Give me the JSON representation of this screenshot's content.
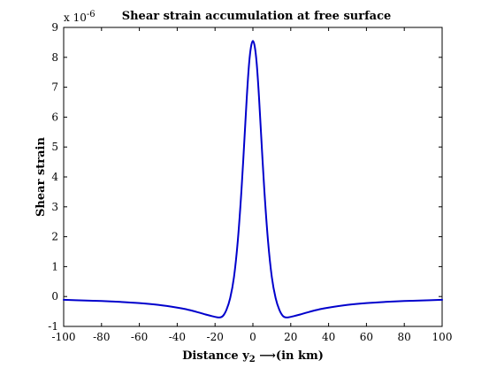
{
  "chart_data": {
    "type": "line",
    "title": "Shear strain accumulation at free surface",
    "xlabel": {
      "main": "Distance y",
      "subscript": "2",
      "suffix": " ⟶(in km)"
    },
    "ylabel": "Shear strain",
    "y_multiplier": {
      "prefix": "x 10",
      "exponent": "-6"
    },
    "xlim": [
      -100,
      100
    ],
    "ylim": [
      -1,
      9
    ],
    "xticks": [
      -100,
      -80,
      -60,
      -40,
      -20,
      0,
      20,
      40,
      60,
      80,
      100
    ],
    "yticks": [
      -1,
      0,
      1,
      2,
      3,
      4,
      5,
      6,
      7,
      8,
      9
    ],
    "grid": false,
    "line_color": "#0000cc",
    "series": [
      {
        "x": [
          -100,
          -90,
          -80,
          -70,
          -60,
          -50,
          -40,
          -35,
          -30,
          -25,
          -22,
          -20,
          -18,
          -16,
          -14,
          -12,
          -10,
          -8,
          -6,
          -4,
          -3,
          -2,
          -1,
          0,
          1,
          2,
          3,
          4,
          6,
          8,
          10,
          12,
          14,
          16,
          18,
          20,
          22,
          25,
          30,
          35,
          40,
          50,
          60,
          70,
          80,
          90,
          100
        ],
        "y": [
          -0.11,
          -0.13,
          -0.15,
          -0.18,
          -0.22,
          -0.28,
          -0.37,
          -0.43,
          -0.51,
          -0.6,
          -0.65,
          -0.68,
          -0.7,
          -0.66,
          -0.45,
          -0.05,
          0.65,
          1.85,
          3.6,
          5.8,
          6.9,
          7.8,
          8.35,
          8.55,
          8.35,
          7.8,
          6.9,
          5.8,
          3.6,
          1.85,
          0.65,
          -0.05,
          -0.45,
          -0.66,
          -0.7,
          -0.68,
          -0.65,
          -0.6,
          -0.51,
          -0.43,
          -0.37,
          -0.28,
          -0.22,
          -0.18,
          -0.15,
          -0.13,
          -0.11
        ]
      }
    ]
  }
}
